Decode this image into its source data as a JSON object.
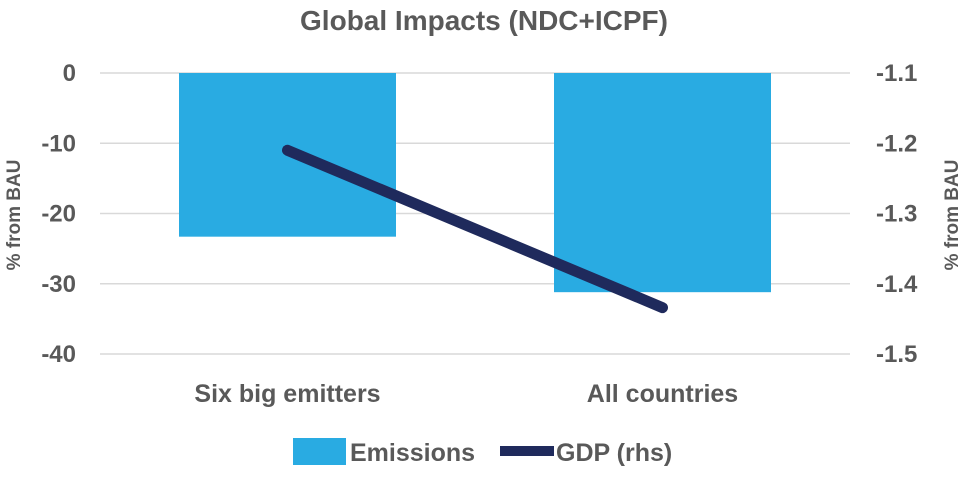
{
  "chart_data": {
    "type": "bar",
    "title": "Global Impacts (NDC+ICPF)",
    "categories": [
      "Six big emitters",
      "All countries"
    ],
    "series": [
      {
        "name": "Emissions",
        "type": "bar",
        "axis": "left",
        "values": [
          -23.3,
          -31.2
        ],
        "color": "#29ABE2"
      },
      {
        "name": "GDP (rhs)",
        "type": "line",
        "axis": "right",
        "values": [
          -1.21,
          -1.434
        ],
        "color": "#1F2A5C"
      }
    ],
    "y_left": {
      "label": "% from BAU",
      "ylim": [
        -40,
        0
      ],
      "ticks": [
        "0",
        "-10",
        "-20",
        "-30",
        "-40"
      ],
      "tick_values": [
        0,
        -10,
        -20,
        -30,
        -40
      ]
    },
    "y_right": {
      "label": "% from BAU",
      "ylim": [
        -1.5,
        -1.1
      ],
      "ticks": [
        "-1.1",
        "-1.2",
        "-1.3",
        "-1.4",
        "-1.5"
      ],
      "tick_values": [
        -1.1,
        -1.2,
        -1.3,
        -1.4,
        -1.5
      ]
    },
    "grid": true,
    "legend_position": "bottom"
  }
}
